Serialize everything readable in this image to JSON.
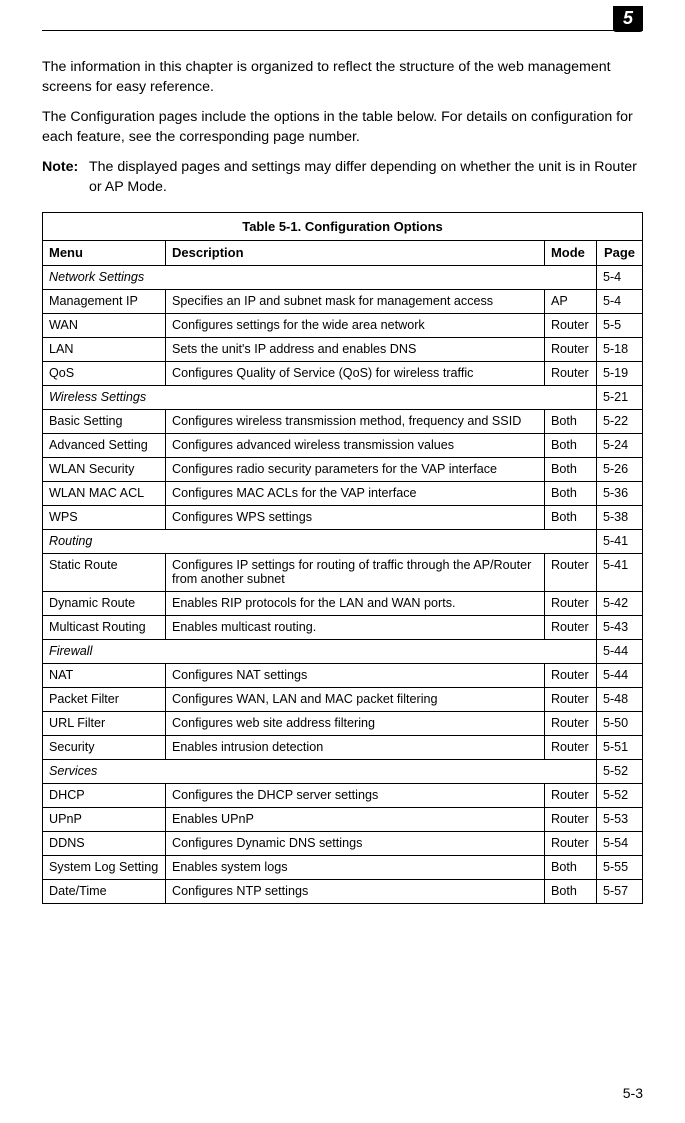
{
  "chapter_number": "5",
  "intro_para1": "The information in this chapter is organized to reflect the structure of the web management screens for easy reference.",
  "intro_para2": "The Configuration pages include the options in the table below. For details on configuration for each feature, see the corresponding page number.",
  "note_label": "Note:",
  "note_text": "The displayed pages and settings may differ depending on whether the unit is in Router or AP Mode.",
  "table_caption": "Table 5-1. Configuration Options",
  "headers": {
    "menu": "Menu",
    "desc": "Description",
    "mode": "Mode",
    "page": "Page"
  },
  "sections": [
    {
      "title": "Network Settings",
      "page": "5-4",
      "rows": [
        {
          "menu": "Management IP",
          "desc": "Specifies an IP and subnet mask for management access",
          "mode": "AP",
          "page": "5-4"
        },
        {
          "menu": "WAN",
          "desc": "Configures settings for the wide area network",
          "mode": "Router",
          "page": "5-5"
        },
        {
          "menu": "LAN",
          "desc": "Sets the unit's IP address and enables DNS",
          "mode": "Router",
          "page": "5-18"
        },
        {
          "menu": "QoS",
          "desc": "Configures Quality of Service (QoS) for wireless traffic",
          "mode": "Router",
          "page": "5-19"
        }
      ]
    },
    {
      "title": "Wireless Settings",
      "page": "5-21",
      "rows": [
        {
          "menu": "Basic Setting",
          "desc": "Configures wireless transmission method, frequency and SSID",
          "mode": "Both",
          "page": "5-22"
        },
        {
          "menu": "Advanced Setting",
          "desc": "Configures advanced wireless transmission values",
          "mode": "Both",
          "page": "5-24"
        },
        {
          "menu": "WLAN Security",
          "desc": "Configures radio security parameters for the VAP interface",
          "mode": "Both",
          "page": "5-26"
        },
        {
          "menu": "WLAN MAC ACL",
          "desc": "Configures MAC ACLs for the VAP interface",
          "mode": "Both",
          "page": "5-36"
        },
        {
          "menu": "WPS",
          "desc": "Configures WPS settings",
          "mode": "Both",
          "page": "5-38"
        }
      ]
    },
    {
      "title": "Routing",
      "page": "5-41",
      "rows": [
        {
          "menu": "Static Route",
          "desc": "Configures IP settings for routing of traffic through the AP/Router from another subnet",
          "mode": "Router",
          "page": "5-41"
        },
        {
          "menu": "Dynamic Route",
          "desc": "Enables RIP protocols for the LAN and WAN ports.",
          "mode": "Router",
          "page": "5-42"
        },
        {
          "menu": "Multicast Routing",
          "desc": "Enables multicast routing.",
          "mode": "Router",
          "page": "5-43"
        }
      ]
    },
    {
      "title": "Firewall",
      "page": "5-44",
      "rows": [
        {
          "menu": "NAT",
          "desc": "Configures NAT settings",
          "mode": "Router",
          "page": "5-44"
        },
        {
          "menu": "Packet Filter",
          "desc": "Configures WAN, LAN and MAC packet filtering",
          "mode": "Router",
          "page": "5-48"
        },
        {
          "menu": "URL Filter",
          "desc": "Configures web site address filtering",
          "mode": "Router",
          "page": "5-50"
        },
        {
          "menu": "Security",
          "desc": "Enables intrusion detection",
          "mode": "Router",
          "page": "5-51"
        }
      ]
    },
    {
      "title": "Services",
      "page": "5-52",
      "rows": [
        {
          "menu": "DHCP",
          "desc": "Configures the DHCP server settings",
          "mode": "Router",
          "page": "5-52"
        },
        {
          "menu": "UPnP",
          "desc": "Enables UPnP",
          "mode": "Router",
          "page": "5-53"
        },
        {
          "menu": "DDNS",
          "desc": "Configures Dynamic DNS settings",
          "mode": "Router",
          "page": "5-54"
        },
        {
          "menu": "System Log Setting",
          "desc": "Enables system logs",
          "mode": "Both",
          "page": "5-55"
        },
        {
          "menu": "Date/Time",
          "desc": "Configures NTP settings",
          "mode": "Both",
          "page": "5-57"
        }
      ]
    }
  ],
  "page_number": "5-3"
}
